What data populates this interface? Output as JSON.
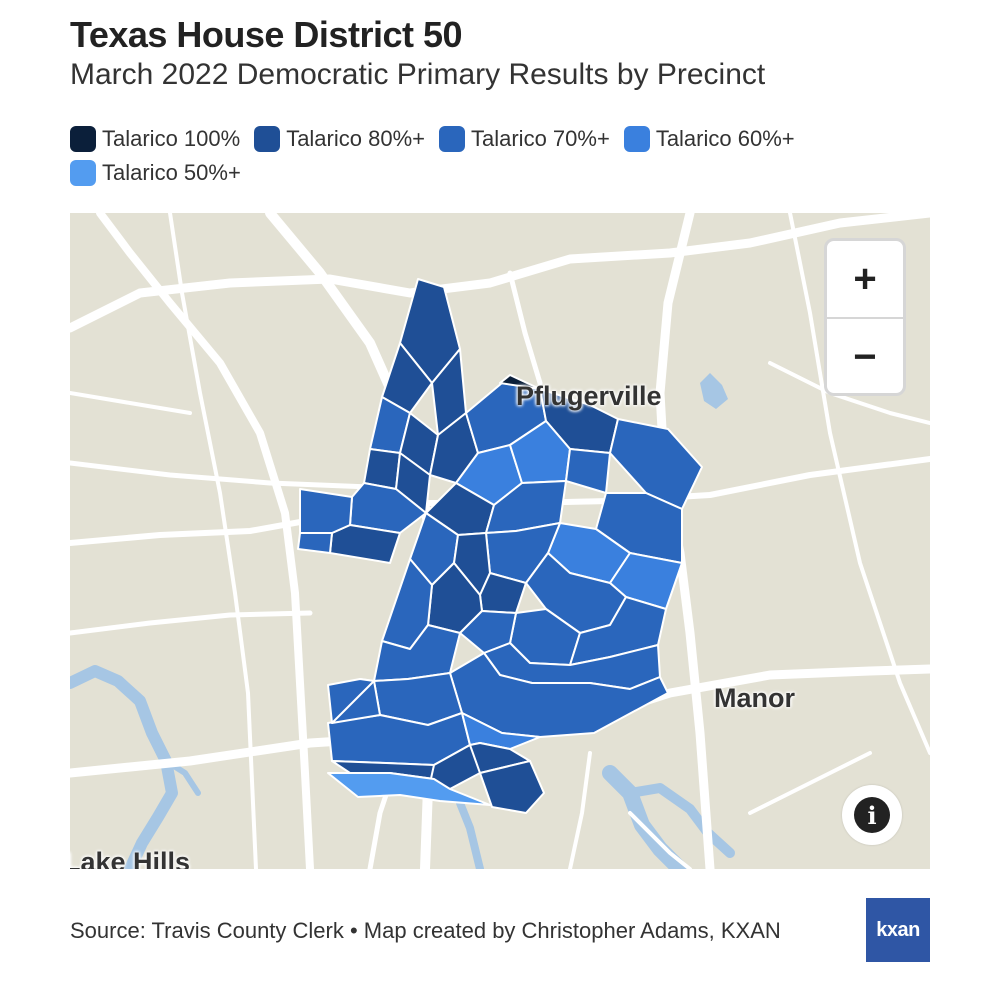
{
  "header": {
    "title": "Texas House District 50",
    "subtitle": "March 2022 Democratic Primary Results by Precinct"
  },
  "legend": {
    "items": [
      {
        "label": "Talarico 100%",
        "color": "#0b1f3a"
      },
      {
        "label": "Talarico 80%+",
        "color": "#1f4f96"
      },
      {
        "label": "Talarico 70%+",
        "color": "#2a66bc"
      },
      {
        "label": "Talarico 60%+",
        "color": "#3a80de"
      },
      {
        "label": "Talarico 50%+",
        "color": "#539cf0"
      }
    ]
  },
  "map": {
    "places": {
      "pflugerville": "Pflugerville",
      "manor": "Manor",
      "lake_hills": "Lake Hills"
    },
    "zoom_in_label": "+",
    "zoom_out_label": "−",
    "info_label": "i",
    "colors": {
      "land": "#e3e1d4",
      "road": "#ffffff",
      "water": "#a6c6e4"
    }
  },
  "footer": {
    "source": "Source: Travis County Clerk • Map created by Christopher Adams, KXAN",
    "logo_text": "kxan"
  }
}
